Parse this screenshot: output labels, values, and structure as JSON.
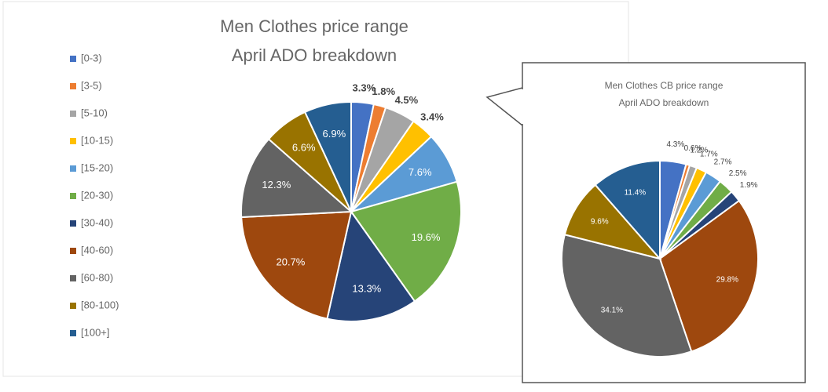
{
  "chart_data": [
    {
      "type": "pie",
      "title": [
        "Men Clothes price range",
        "April ADO breakdown"
      ],
      "categories": [
        "[0-3)",
        "[3-5)",
        "[5-10)",
        "[10-15)",
        "[15-20)",
        "[20-30)",
        "[30-40)",
        "[40-60)",
        "[60-80)",
        "[80-100)",
        "[100+]"
      ],
      "values": [
        3.3,
        1.8,
        4.5,
        3.4,
        7.6,
        19.6,
        13.3,
        20.7,
        12.3,
        6.6,
        6.9
      ],
      "value_labels": [
        "3.3%",
        "1.8%",
        "4.5%",
        "3.4%",
        "7.6%",
        "19.6%",
        "13.3%",
        "20.7%",
        "12.3%",
        "6.6%",
        "6.9%"
      ],
      "colors": [
        "#4472c4",
        "#ed7d31",
        "#a5a5a5",
        "#ffc000",
        "#5b9bd5",
        "#70ad47",
        "#264478",
        "#9e480e",
        "#636363",
        "#997300",
        "#255e91"
      ],
      "legend": "left"
    },
    {
      "type": "pie",
      "title": [
        "Men Clothes CB price range",
        "April ADO breakdown"
      ],
      "values": [
        4.3,
        0.6,
        1.2,
        1.7,
        2.7,
        2.5,
        1.9,
        29.8,
        34.1,
        9.6,
        11.4
      ],
      "value_labels": [
        "4.3%",
        "0.6%",
        "1.2%",
        "1.7%",
        "2.7%",
        "2.5%",
        "1.9%",
        "29.8%",
        "34.1%",
        "9.6%",
        "11.4%"
      ],
      "colors": [
        "#4472c4",
        "#ed7d31",
        "#a5a5a5",
        "#ffc000",
        "#5b9bd5",
        "#70ad47",
        "#264478",
        "#9e480e",
        "#636363",
        "#997300",
        "#255e91"
      ]
    }
  ]
}
